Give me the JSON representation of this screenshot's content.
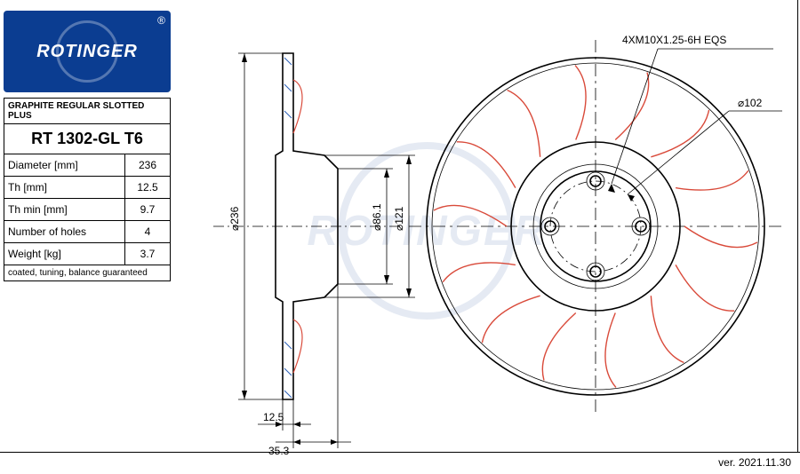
{
  "brand": "ROTINGER",
  "registered": "®",
  "header_text": "GRAPHITE REGULAR SLOTTED PLUS",
  "part_number": "RT 1302-GL T6",
  "specs": [
    {
      "label": "Diameter [mm]",
      "value": "236"
    },
    {
      "label": "Th [mm]",
      "value": "12.5"
    },
    {
      "label": "Th min [mm]",
      "value": "9.7"
    },
    {
      "label": "Number of holes",
      "value": "4"
    },
    {
      "label": "Weight [kg]",
      "value": "3.7"
    }
  ],
  "notes": "coated, tuning,\nbalance guaranteed",
  "version": "ver. 2021.11.30",
  "side_view": {
    "height_dim": "⌀236",
    "thickness_dim": "12.5",
    "offset_dim": "35.3",
    "color_thick": "#000000",
    "color_blue": "#2b5fb8"
  },
  "front_view": {
    "outer_dia_label": "⌀236",
    "hub_inner_label": "⌀86.1",
    "hub_outer_label": "⌀121",
    "bolt_circle_label": "⌀102",
    "bolt_spec": "4XM10X1.25-6H  EQS",
    "num_slots": 14,
    "num_bolts": 4,
    "slot_color": "#d94a3a",
    "line_color": "#000000",
    "blue_color": "#2b5fb8"
  },
  "colors": {
    "brand_bg": "#0b3d91",
    "brand_fg": "#ffffff",
    "page_bg": "#ffffff",
    "ink": "#000000"
  }
}
